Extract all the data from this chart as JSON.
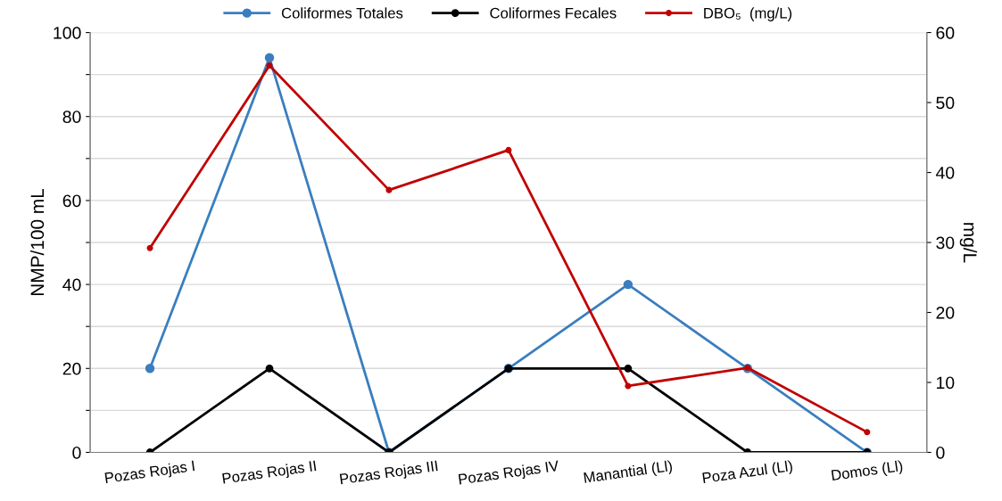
{
  "chart_data": {
    "type": "line",
    "categories": [
      "Pozas Rojas I",
      "Pozas Rojas II",
      "Pozas Rojas III",
      "Pozas Rojas IV",
      "Manantial (Ll)",
      "Poza Azul (Ll)",
      "Domos (Ll)"
    ],
    "series": [
      {
        "name": "Coliformes Totales",
        "color": "#3a7ebf",
        "values": [
          20,
          94,
          0,
          20,
          40,
          20,
          0
        ]
      },
      {
        "name": "Coliformes Fecales",
        "color": "#000000",
        "values": [
          0,
          20,
          0,
          20,
          20,
          0,
          0
        ]
      },
      {
        "name": "DBO₅  (mg/L)",
        "color": "#c00000",
        "axis": "y2",
        "values": [
          29.2,
          55.3,
          37.5,
          43.2,
          9.5,
          12.1,
          2.9
        ]
      }
    ],
    "ylabel": "NMP/100 mL",
    "y2label": "mg/L",
    "ylim": [
      0,
      100
    ],
    "yticks": [
      0,
      {
        "value": 10,
        "label": null
      },
      20,
      {
        "value": 30,
        "label": null
      },
      40,
      {
        "value": 50,
        "label": null
      },
      60,
      {
        "value": 70,
        "label": null
      },
      80,
      {
        "value": 90,
        "label": null
      },
      100
    ],
    "y2lim": [
      0,
      60
    ],
    "y2ticks": [
      0,
      10,
      20,
      30,
      40,
      50,
      60
    ],
    "grid": "y",
    "legend": "top",
    "marker": "circle",
    "line_style": "solid"
  }
}
